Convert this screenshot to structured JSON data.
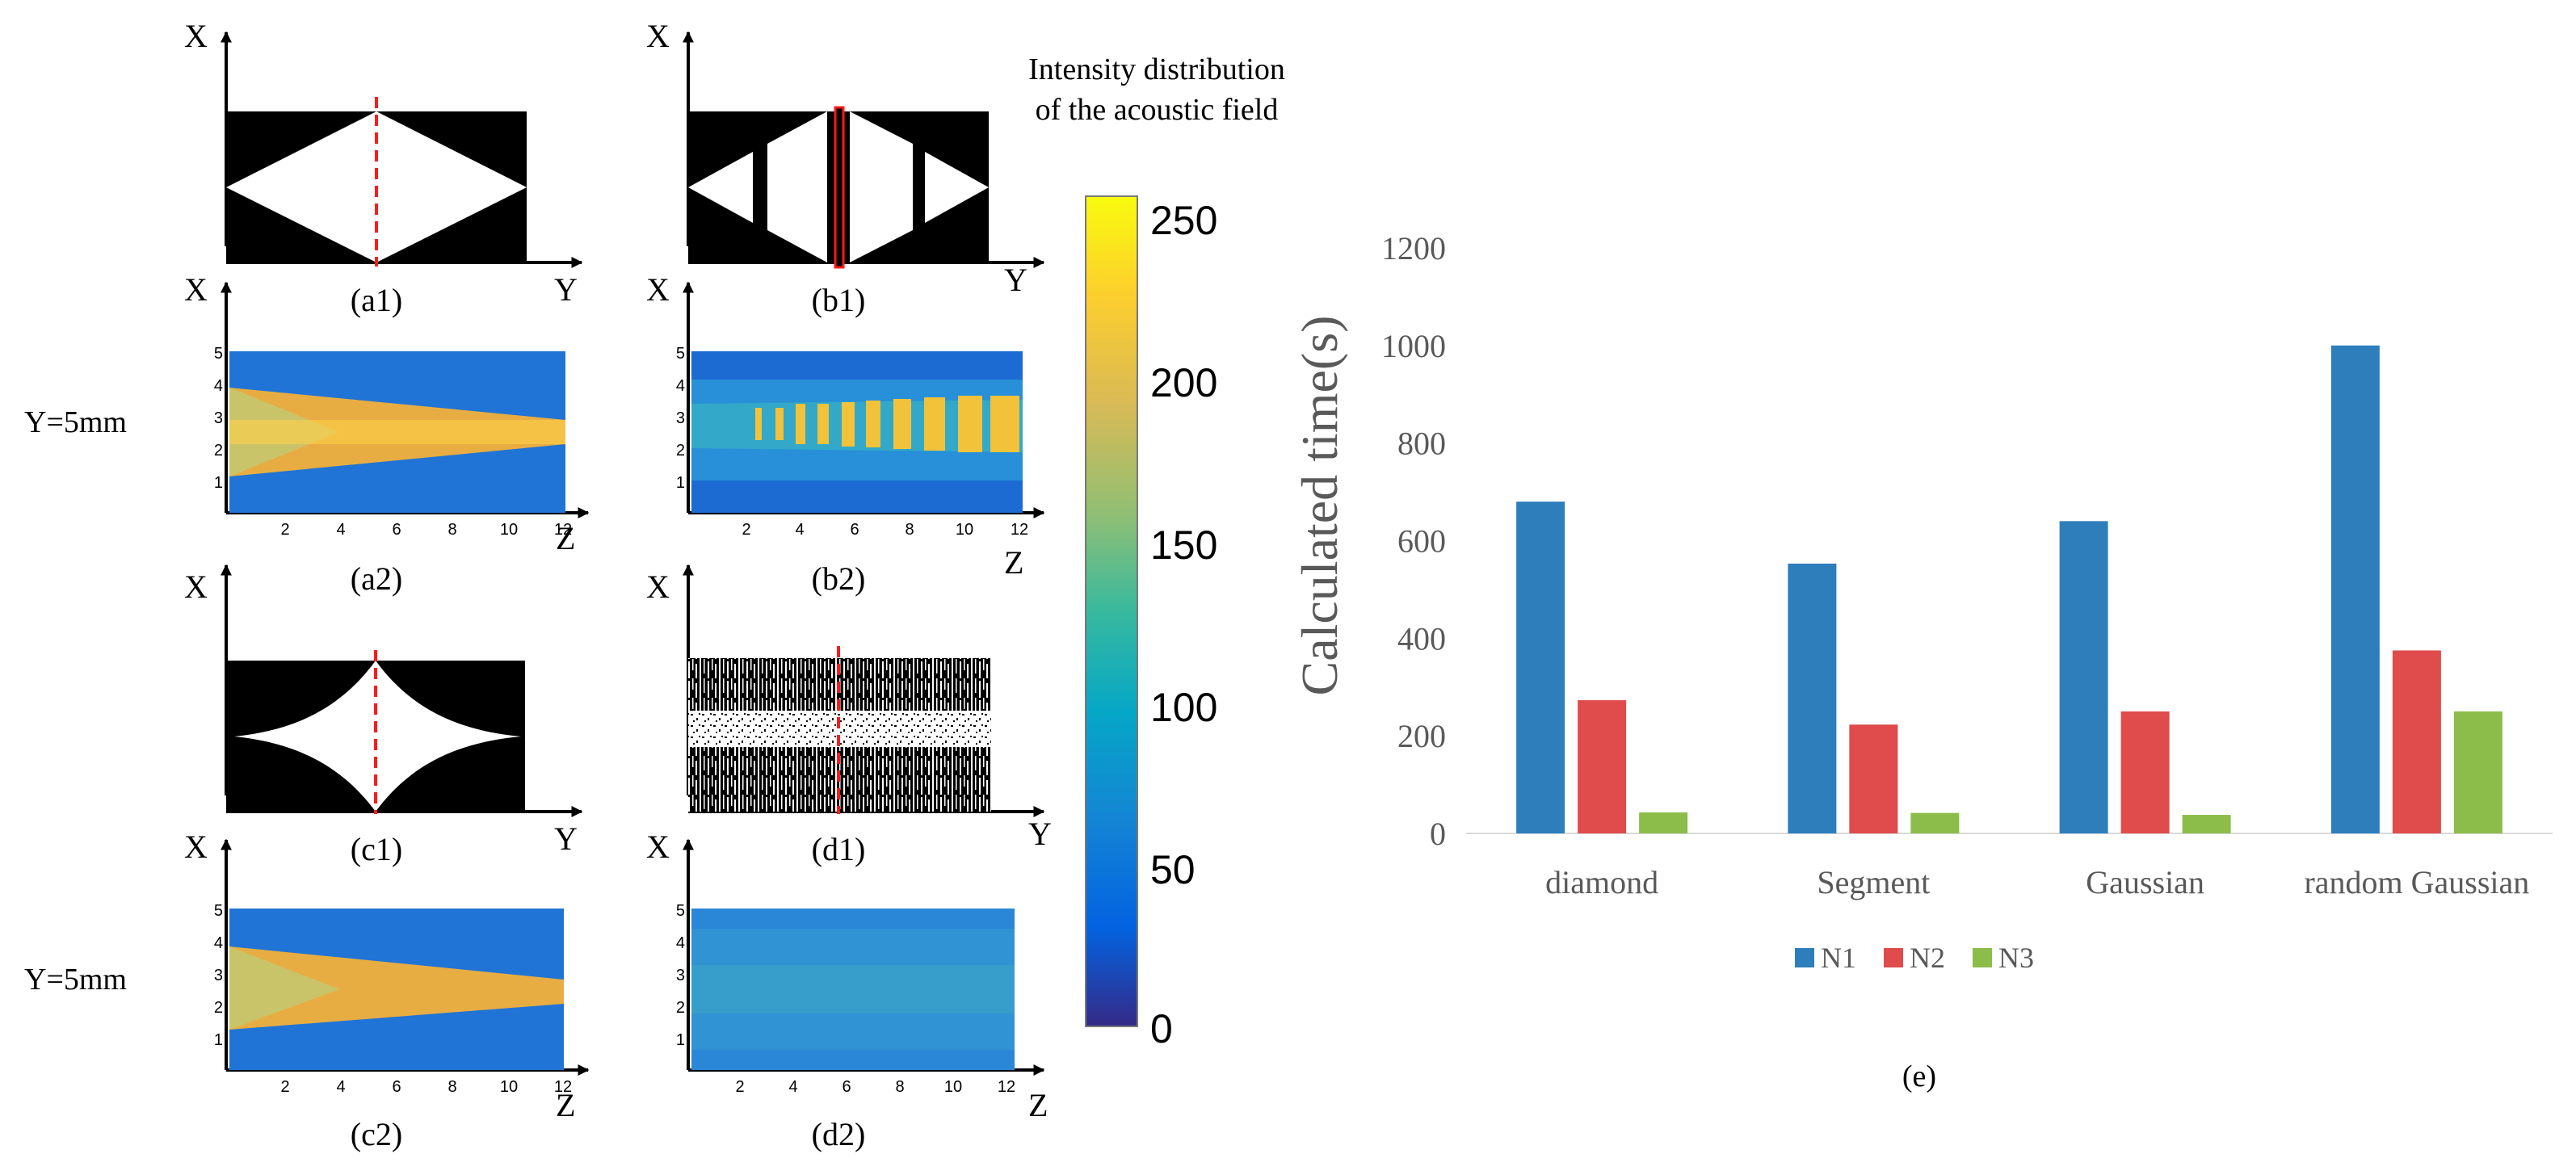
{
  "left_panels": {
    "colorbar": {
      "title_line1": "Intensity distribution",
      "title_line2": "of the acoustic field",
      "ticks": [
        "0",
        "50",
        "100",
        "150",
        "200",
        "250"
      ],
      "range": [
        0,
        255
      ],
      "colormap": "parula"
    },
    "y_label_a": "Y=5mm",
    "y_label_c": "Y=5mm",
    "masks": {
      "a1": {
        "caption": "(a1)",
        "axis_v": "X",
        "axis_h": "Y",
        "shape": "diamond"
      },
      "b1": {
        "caption": "(b1)",
        "axis_v": "X",
        "axis_h": "Y",
        "shape": "segment"
      },
      "c1": {
        "caption": "(c1)",
        "axis_v": "X",
        "axis_h": "Y",
        "shape": "gaussian"
      },
      "d1": {
        "caption": "(d1)",
        "axis_v": "X",
        "axis_h": "Y",
        "shape": "random gaussian"
      }
    },
    "fields": {
      "a2": {
        "caption": "(a2)",
        "axis_v": "X",
        "axis_h": "Z"
      },
      "b2": {
        "caption": "(b2)",
        "axis_v": "X",
        "axis_h": "Z"
      },
      "c2": {
        "caption": "(c2)",
        "axis_v": "X",
        "axis_h": "Z"
      },
      "d2": {
        "caption": "(d2)",
        "axis_v": "X",
        "axis_h": "Z"
      }
    },
    "field_x_ticks": [
      "1",
      "2",
      "3",
      "4",
      "5"
    ],
    "field_z_ticks": [
      "2",
      "4",
      "6",
      "8",
      "10",
      "12"
    ]
  },
  "chart_data": {
    "type": "bar",
    "title": "",
    "caption": "(e)",
    "ylabel": "Calculated time(s)",
    "xlabel": "",
    "categories": [
      "diamond",
      "Segment",
      "Gaussian",
      "random Gaussian"
    ],
    "series": [
      {
        "name": "N1",
        "color": "#2e7ebc",
        "values": [
          680,
          553,
          640,
          1000
        ]
      },
      {
        "name": "N2",
        "color": "#e04b4b",
        "values": [
          273,
          223,
          250,
          375
        ]
      },
      {
        "name": "N3",
        "color": "#8cbd4a",
        "values": [
          43,
          42,
          38,
          250
        ]
      }
    ],
    "ylim": [
      0,
      1200
    ],
    "yticks": [
      "0",
      "200",
      "400",
      "600",
      "800",
      "1000",
      "1200"
    ],
    "grid": false,
    "legend_position": "bottom"
  }
}
